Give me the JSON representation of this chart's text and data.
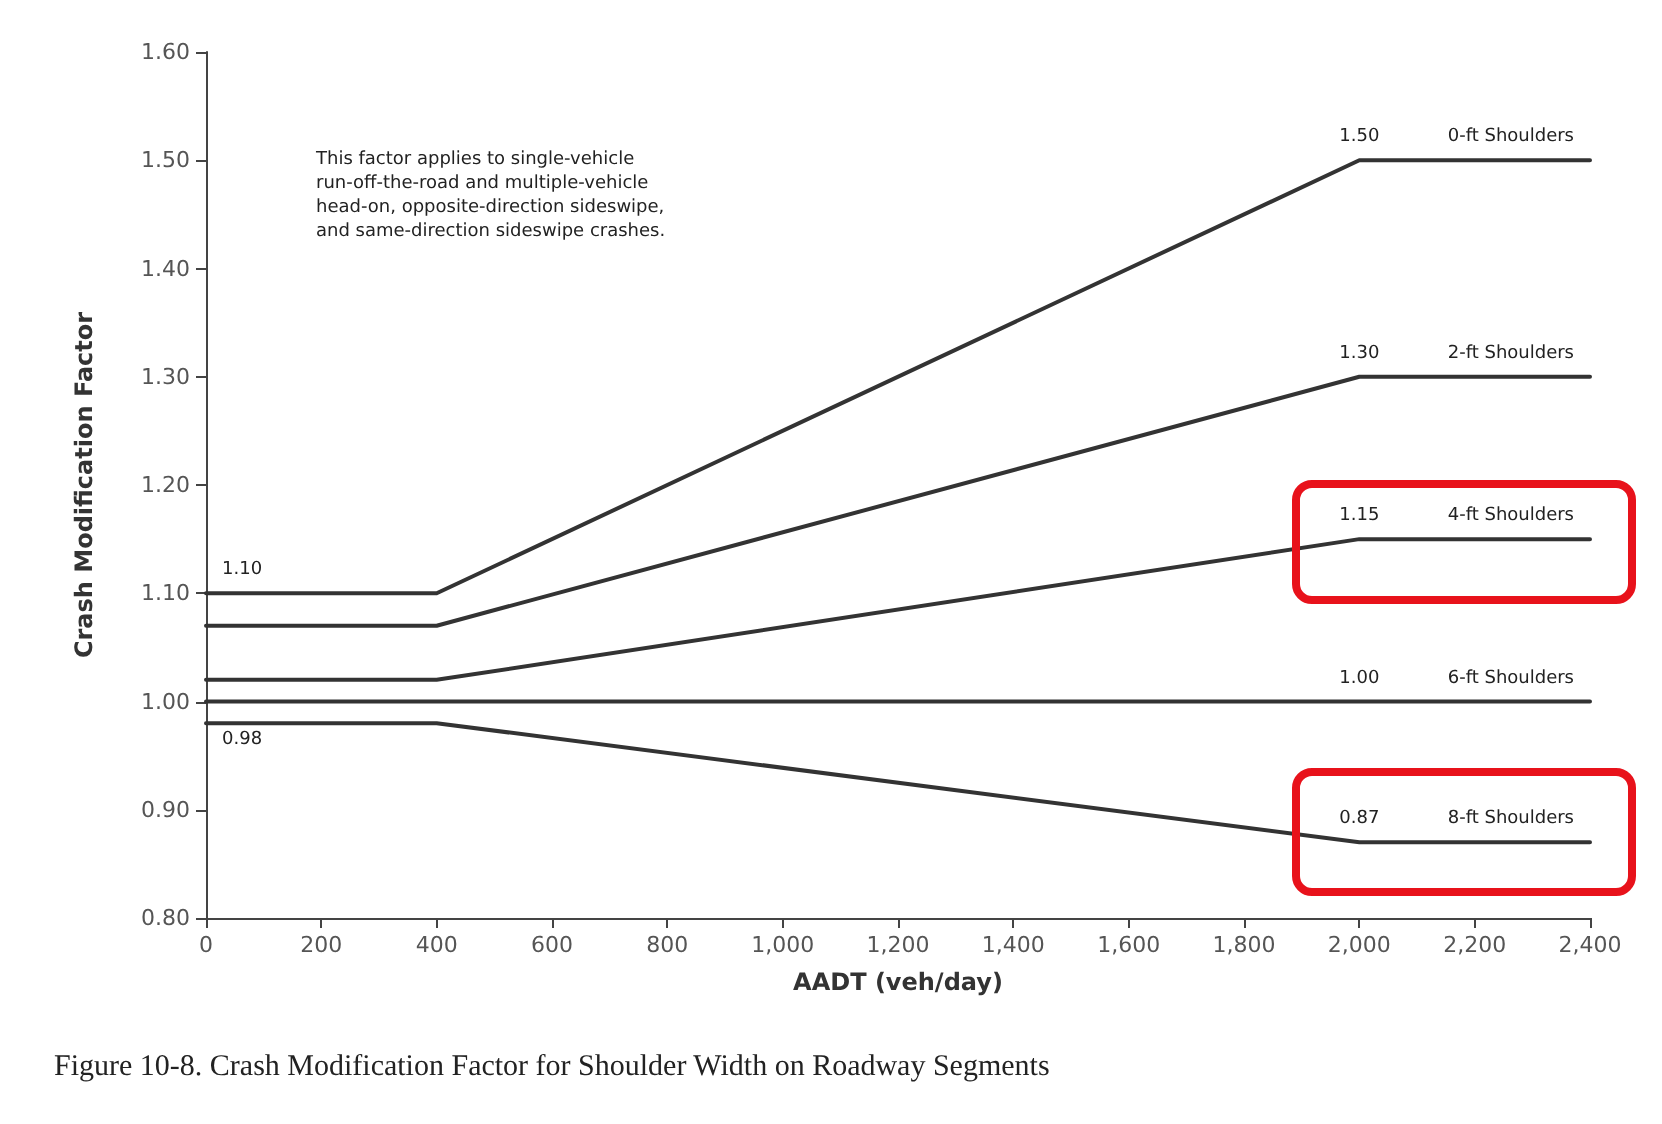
{
  "chart_data": {
    "type": "line",
    "title": "Figure 10-8. Crash Modification Factor for Shoulder Width on Roadway Segments",
    "xlabel": "AADT (veh/day)",
    "ylabel": "Crash Modification Factor",
    "annotations": [
      "This factor applies to single-vehicle run-off-the-road and multiple-vehicle head-on, opposite-direction sideswipe, and same-direction sideswipe crashes."
    ],
    "x": [
      0,
      400,
      2000,
      2400
    ],
    "series": [
      {
        "name": "0-ft Shoulders",
        "color": "#333333",
        "values": [
          1.1,
          1.1,
          1.5,
          1.5
        ],
        "value_labels": [
          "1.10",
          null,
          "1.50",
          null
        ]
      },
      {
        "name": "2-ft Shoulders",
        "color": "#333333",
        "values": [
          1.07,
          1.07,
          1.3,
          1.3
        ],
        "value_labels": [
          null,
          null,
          "1.30",
          null
        ]
      },
      {
        "name": "4-ft Shoulders",
        "color": "#333333",
        "values": [
          1.02,
          1.02,
          1.15,
          1.15
        ],
        "value_labels": [
          null,
          null,
          "1.15",
          null
        ]
      },
      {
        "name": "6-ft Shoulders",
        "color": "#333333",
        "values": [
          1.0,
          1.0,
          1.0,
          1.0
        ],
        "value_labels": [
          null,
          null,
          "1.00",
          null
        ]
      },
      {
        "name": "8-ft Shoulders",
        "color": "#333333",
        "values": [
          0.98,
          0.98,
          0.87,
          0.87
        ],
        "value_labels": [
          "0.98",
          null,
          "0.87",
          null
        ]
      }
    ],
    "xlim": [
      0,
      2400
    ],
    "xticks": [
      0,
      200,
      400,
      600,
      800,
      {
        "value": 1000,
        "label": "1,000"
      },
      {
        "value": 1200,
        "label": "1,200"
      },
      {
        "value": 1400,
        "label": "1,400"
      },
      {
        "value": 1600,
        "label": "1,600"
      },
      {
        "value": 1800,
        "label": "1,800"
      },
      {
        "value": 2000,
        "label": "2,000"
      },
      {
        "value": 2200,
        "label": "2,200"
      },
      {
        "value": 2400,
        "label": "2,400"
      }
    ],
    "ylim": [
      0.8,
      1.6
    ],
    "yticks": [
      {
        "value": 0.8,
        "label": "0.80"
      },
      {
        "value": 0.9,
        "label": "0.90"
      },
      {
        "value": 1.0,
        "label": "1.00"
      },
      {
        "value": 1.1,
        "label": "1.10"
      },
      {
        "value": 1.2,
        "label": "1.20"
      },
      {
        "value": 1.3,
        "label": "1.30"
      },
      {
        "value": 1.4,
        "label": "1.40"
      },
      {
        "value": 1.5,
        "label": "1.50"
      },
      {
        "value": 1.6,
        "label": "1.60"
      }
    ],
    "grid": false,
    "legend": false,
    "marker": "none",
    "line_style": "solid"
  }
}
